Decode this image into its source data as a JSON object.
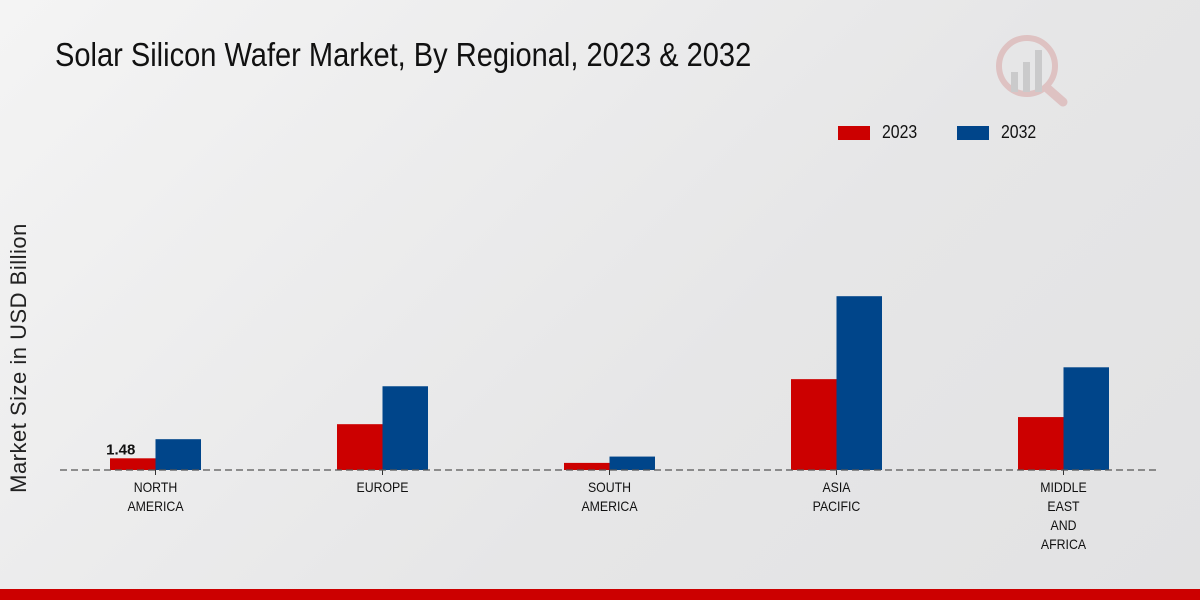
{
  "chart_data": {
    "type": "bar",
    "title": "Solar Silicon Wafer Market, By Regional, 2023 & 2032",
    "xlabel": "",
    "ylabel": "Market Size in USD Billion",
    "categories": [
      [
        "NORTH",
        "AMERICA"
      ],
      [
        "EUROPE"
      ],
      [
        "SOUTH",
        "AMERICA"
      ],
      [
        "ASIA",
        "PACIFIC"
      ],
      [
        "MIDDLE",
        "EAST",
        "AND",
        "AFRICA"
      ]
    ],
    "series": [
      {
        "name": "2023",
        "color": "#cc0000",
        "values": [
          1.48,
          5.8,
          0.9,
          11.5,
          6.7
        ]
      },
      {
        "name": "2032",
        "color": "#00458a",
        "values": [
          3.9,
          10.6,
          1.7,
          22.0,
          13.0
        ]
      }
    ],
    "data_labels": [
      {
        "series": 0,
        "index": 0,
        "text": "1.48"
      }
    ],
    "ylim": [
      0,
      40
    ],
    "grid": false,
    "legend": "top-right"
  },
  "accent": "#cc0000"
}
